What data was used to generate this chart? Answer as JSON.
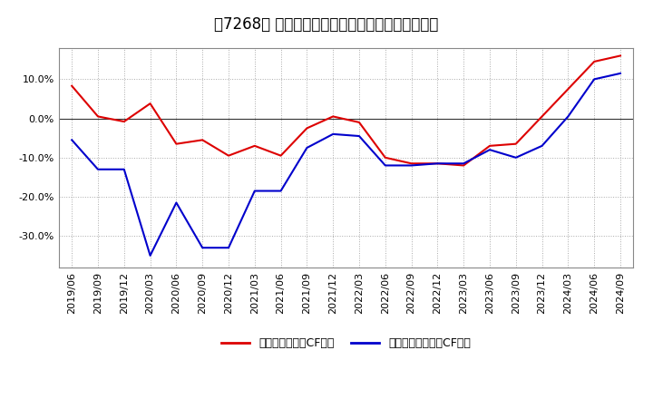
{
  "title": "［7268］ 有利子負債キャッシュフロー比率の推移",
  "legend_label_red": "有利子負債営業CF比率",
  "legend_label_blue": "有利子負債フリーCF比率",
  "x_labels": [
    "2019/06",
    "2019/09",
    "2019/12",
    "2020/03",
    "2020/06",
    "2020/09",
    "2020/12",
    "2021/03",
    "2021/06",
    "2021/09",
    "2021/12",
    "2022/03",
    "2022/06",
    "2022/09",
    "2022/12",
    "2023/03",
    "2023/06",
    "2023/09",
    "2023/12",
    "2024/03",
    "2024/06",
    "2024/09"
  ],
  "red_data": [
    0.083,
    0.005,
    -0.008,
    0.038,
    -0.065,
    -0.055,
    -0.095,
    -0.07,
    -0.095,
    -0.025,
    0.005,
    -0.01,
    -0.1,
    -0.115,
    -0.115,
    -0.12,
    -0.07,
    -0.065,
    0.005,
    0.075,
    0.145,
    0.16
  ],
  "blue_data": [
    -0.055,
    -0.13,
    -0.13,
    -0.35,
    -0.215,
    -0.33,
    -0.33,
    -0.185,
    -0.185,
    -0.075,
    -0.04,
    -0.045,
    -0.12,
    -0.12,
    -0.115,
    -0.115,
    -0.08,
    -0.1,
    -0.07,
    0.005,
    0.1,
    0.115
  ],
  "red_color": "#dd0000",
  "blue_color": "#0000cc",
  "bg_color": "#ffffff",
  "grid_color": "#aaaaaa",
  "ylim": [
    -0.38,
    0.18
  ],
  "yticks": [
    0.1,
    0.0,
    -0.1,
    -0.2,
    -0.3
  ],
  "title_fontsize": 12,
  "legend_fontsize": 9,
  "tick_fontsize": 8
}
